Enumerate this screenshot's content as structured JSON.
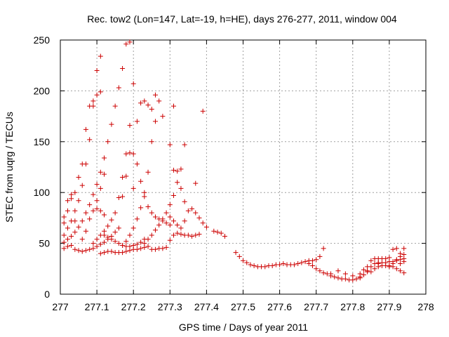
{
  "chart_data": {
    "type": "scatter",
    "title": "Rec. tow2 (Lon=147, Lat=-19, h=HE), days 276-277, 2011, window 004",
    "xlabel": "GPS time / Days of year 2011",
    "ylabel": "STEC from uqrg / TECUs",
    "xlim": [
      277,
      278
    ],
    "ylim": [
      0,
      250
    ],
    "xticks": [
      277,
      277.1,
      277.2,
      277.3,
      277.4,
      277.5,
      277.6,
      277.7,
      277.8,
      277.9,
      278
    ],
    "xtick_labels": [
      "277",
      "277.1",
      "277.2",
      "277.3",
      "277.4",
      "277.5",
      "277.6",
      "277.7",
      "277.8",
      "277.9",
      "278"
    ],
    "yticks": [
      0,
      50,
      100,
      150,
      200,
      250
    ],
    "ytick_labels": [
      "0",
      "50",
      "100",
      "150",
      "200",
      "250"
    ],
    "grid": true,
    "marker": "+",
    "marker_color": "#cc0000",
    "series": [
      {
        "points": [
          [
            277.01,
            45
          ],
          [
            277.02,
            47
          ],
          [
            277.03,
            48
          ],
          [
            277.04,
            44
          ],
          [
            277.05,
            43
          ],
          [
            277.06,
            42
          ],
          [
            277.07,
            43
          ],
          [
            277.08,
            44
          ],
          [
            277.09,
            45
          ],
          [
            277.1,
            47
          ],
          [
            277.11,
            49
          ],
          [
            277.12,
            51
          ],
          [
            277.13,
            54
          ],
          [
            277.14,
            57
          ],
          [
            277.15,
            61
          ],
          [
            277.16,
            65
          ],
          [
            277.01,
            51
          ],
          [
            277.02,
            54
          ],
          [
            277.03,
            57
          ],
          [
            277.04,
            61
          ],
          [
            277.05,
            66
          ],
          [
            277.06,
            72
          ],
          [
            277.07,
            80
          ],
          [
            277.08,
            88
          ],
          [
            277.09,
            98
          ],
          [
            277.1,
            108
          ],
          [
            277.11,
            120
          ],
          [
            277.12,
            134
          ],
          [
            277.13,
            150
          ],
          [
            277.14,
            167
          ],
          [
            277.15,
            185
          ],
          [
            277.16,
            203
          ],
          [
            277.17,
            222
          ],
          [
            277.18,
            246
          ],
          [
            277.19,
            248
          ],
          [
            277.01,
            58
          ],
          [
            277.02,
            65
          ],
          [
            277.03,
            72
          ],
          [
            277.04,
            82
          ],
          [
            277.05,
            92
          ],
          [
            277.06,
            107
          ],
          [
            277.07,
            128
          ],
          [
            277.08,
            152
          ],
          [
            277.09,
            185
          ],
          [
            277.1,
            220
          ],
          [
            277.11,
            234
          ],
          [
            277.01,
            70
          ],
          [
            277.02,
            82
          ],
          [
            277.03,
            94
          ],
          [
            277.04,
            100
          ],
          [
            277.05,
            115
          ],
          [
            277.06,
            128
          ],
          [
            277.07,
            162
          ],
          [
            277.08,
            185
          ],
          [
            277.09,
            190
          ],
          [
            277.1,
            196
          ],
          [
            277.11,
            199
          ],
          [
            277.01,
            76
          ],
          [
            277.02,
            92
          ],
          [
            277.03,
            98
          ],
          [
            277.04,
            72
          ],
          [
            277.06,
            54
          ],
          [
            277.07,
            62
          ],
          [
            277.08,
            74
          ],
          [
            277.09,
            82
          ],
          [
            277.1,
            92
          ],
          [
            277.11,
            104
          ],
          [
            277.12,
            118
          ],
          [
            277.1,
            84
          ],
          [
            277.11,
            82
          ],
          [
            277.12,
            78
          ],
          [
            277.09,
            50
          ],
          [
            277.1,
            54
          ],
          [
            277.11,
            58
          ],
          [
            277.12,
            62
          ],
          [
            277.13,
            67
          ],
          [
            277.14,
            73
          ],
          [
            277.15,
            80
          ],
          [
            277.16,
            95
          ],
          [
            277.17,
            115
          ],
          [
            277.18,
            138
          ],
          [
            277.19,
            166
          ],
          [
            277.2,
            207
          ],
          [
            277.11,
            40
          ],
          [
            277.12,
            41
          ],
          [
            277.13,
            42
          ],
          [
            277.14,
            42
          ],
          [
            277.15,
            41
          ],
          [
            277.16,
            41
          ],
          [
            277.17,
            41
          ],
          [
            277.18,
            42
          ],
          [
            277.19,
            43
          ],
          [
            277.2,
            44
          ],
          [
            277.21,
            44
          ],
          [
            277.22,
            45
          ],
          [
            277.23,
            46
          ],
          [
            277.24,
            47
          ],
          [
            277.12,
            58
          ],
          [
            277.13,
            56
          ],
          [
            277.14,
            54
          ],
          [
            277.15,
            52
          ],
          [
            277.16,
            50
          ],
          [
            277.17,
            48
          ],
          [
            277.18,
            47
          ],
          [
            277.19,
            47
          ],
          [
            277.2,
            48
          ],
          [
            277.21,
            49
          ],
          [
            277.22,
            51
          ],
          [
            277.23,
            54
          ],
          [
            277.17,
            48
          ],
          [
            277.18,
            52
          ],
          [
            277.19,
            58
          ],
          [
            277.2,
            65
          ],
          [
            277.21,
            74
          ],
          [
            277.22,
            85
          ],
          [
            277.23,
            100
          ],
          [
            277.24,
            120
          ],
          [
            277.25,
            150
          ],
          [
            277.26,
            170
          ],
          [
            277.27,
            190
          ],
          [
            277.17,
            96
          ],
          [
            277.18,
            116
          ],
          [
            277.19,
            139
          ],
          [
            277.2,
            138
          ],
          [
            277.21,
            170
          ],
          [
            277.22,
            188
          ],
          [
            277.23,
            190
          ],
          [
            277.24,
            186
          ],
          [
            277.2,
            104
          ],
          [
            277.21,
            128
          ],
          [
            277.22,
            111
          ],
          [
            277.23,
            96
          ],
          [
            277.24,
            86
          ],
          [
            277.25,
            80
          ],
          [
            277.26,
            76
          ],
          [
            277.27,
            74
          ],
          [
            277.28,
            72
          ],
          [
            277.29,
            70
          ],
          [
            277.3,
            68
          ],
          [
            277.23,
            50
          ],
          [
            277.24,
            54
          ],
          [
            277.25,
            58
          ],
          [
            277.26,
            63
          ],
          [
            277.27,
            68
          ],
          [
            277.28,
            74
          ],
          [
            277.29,
            80
          ],
          [
            277.3,
            88
          ],
          [
            277.31,
            97
          ],
          [
            277.32,
            110
          ],
          [
            277.33,
            123
          ],
          [
            277.34,
            147
          ],
          [
            277.25,
            182
          ],
          [
            277.26,
            196
          ],
          [
            277.28,
            175
          ],
          [
            277.3,
            147
          ],
          [
            277.31,
            122
          ],
          [
            277.32,
            121
          ],
          [
            277.33,
            104
          ],
          [
            277.34,
            91
          ],
          [
            277.31,
            185
          ],
          [
            277.37,
            109
          ],
          [
            277.39,
            180
          ],
          [
            277.25,
            44
          ],
          [
            277.26,
            44
          ],
          [
            277.27,
            45
          ],
          [
            277.28,
            45
          ],
          [
            277.29,
            46
          ],
          [
            277.3,
            53
          ],
          [
            277.31,
            58
          ],
          [
            277.32,
            60
          ],
          [
            277.33,
            59
          ],
          [
            277.34,
            58
          ],
          [
            277.35,
            58
          ],
          [
            277.36,
            57
          ],
          [
            277.37,
            58
          ],
          [
            277.38,
            59
          ],
          [
            277.3,
            76
          ],
          [
            277.31,
            72
          ],
          [
            277.32,
            68
          ],
          [
            277.33,
            65
          ],
          [
            277.34,
            72
          ],
          [
            277.35,
            82
          ],
          [
            277.36,
            84
          ],
          [
            277.37,
            80
          ],
          [
            277.38,
            75
          ],
          [
            277.39,
            70
          ],
          [
            277.4,
            66
          ],
          [
            277.42,
            62
          ],
          [
            277.43,
            61
          ],
          [
            277.44,
            60
          ],
          [
            277.45,
            57
          ],
          [
            277.48,
            41
          ],
          [
            277.49,
            37
          ],
          [
            277.5,
            33
          ],
          [
            277.51,
            31
          ],
          [
            277.52,
            29
          ],
          [
            277.53,
            28
          ],
          [
            277.54,
            27
          ],
          [
            277.55,
            27
          ],
          [
            277.56,
            27
          ],
          [
            277.57,
            28
          ],
          [
            277.58,
            28
          ],
          [
            277.59,
            29
          ],
          [
            277.6,
            29
          ],
          [
            277.61,
            30
          ],
          [
            277.62,
            29
          ],
          [
            277.63,
            29
          ],
          [
            277.64,
            29
          ],
          [
            277.65,
            30
          ],
          [
            277.66,
            31
          ],
          [
            277.67,
            32
          ],
          [
            277.68,
            33
          ],
          [
            277.69,
            33
          ],
          [
            277.7,
            34
          ],
          [
            277.71,
            37
          ],
          [
            277.72,
            45
          ],
          [
            277.68,
            30
          ],
          [
            277.69,
            28
          ],
          [
            277.7,
            25
          ],
          [
            277.71,
            23
          ],
          [
            277.72,
            21
          ],
          [
            277.73,
            20
          ],
          [
            277.74,
            18
          ],
          [
            277.75,
            17
          ],
          [
            277.76,
            16
          ],
          [
            277.77,
            15
          ],
          [
            277.78,
            15
          ],
          [
            277.79,
            14
          ],
          [
            277.8,
            14
          ],
          [
            277.81,
            15
          ],
          [
            277.82,
            16
          ],
          [
            277.83,
            19
          ],
          [
            277.84,
            22
          ],
          [
            277.74,
            20
          ],
          [
            277.76,
            23
          ],
          [
            277.78,
            20
          ],
          [
            277.8,
            18
          ],
          [
            277.82,
            17
          ],
          [
            277.84,
            23
          ],
          [
            277.85,
            27
          ],
          [
            277.86,
            30
          ],
          [
            277.87,
            31
          ],
          [
            277.82,
            20
          ],
          [
            277.83,
            24
          ],
          [
            277.84,
            27
          ],
          [
            277.85,
            33
          ],
          [
            277.86,
            35
          ],
          [
            277.87,
            35
          ],
          [
            277.88,
            35
          ],
          [
            277.89,
            35
          ],
          [
            277.9,
            36
          ],
          [
            277.91,
            44
          ],
          [
            277.92,
            45
          ],
          [
            277.93,
            40
          ],
          [
            277.94,
            45
          ],
          [
            277.85,
            22
          ],
          [
            277.86,
            25
          ],
          [
            277.87,
            27
          ],
          [
            277.88,
            28
          ],
          [
            277.89,
            28
          ],
          [
            277.9,
            28
          ],
          [
            277.91,
            27
          ],
          [
            277.92,
            25
          ],
          [
            277.93,
            23
          ],
          [
            277.94,
            21
          ],
          [
            277.87,
            30
          ],
          [
            277.88,
            31
          ],
          [
            277.89,
            31
          ],
          [
            277.9,
            32
          ],
          [
            277.91,
            32
          ],
          [
            277.92,
            33
          ],
          [
            277.93,
            34
          ],
          [
            277.94,
            35
          ],
          [
            277.9,
            27
          ],
          [
            277.91,
            30
          ],
          [
            277.92,
            34
          ],
          [
            277.93,
            37
          ],
          [
            277.94,
            39
          ],
          [
            277.93,
            30
          ],
          [
            277.94,
            32
          ]
        ]
      }
    ]
  }
}
